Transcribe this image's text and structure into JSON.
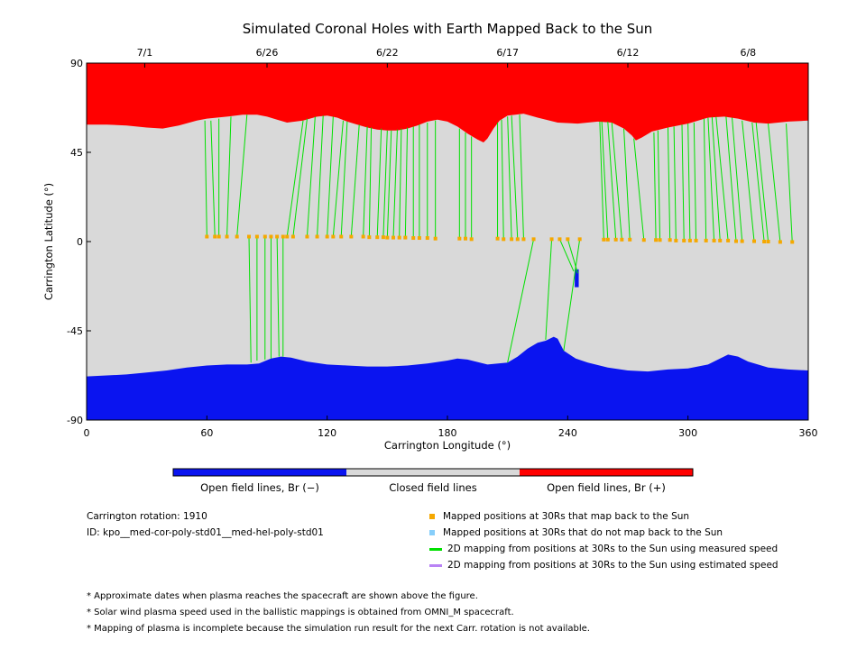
{
  "chart_data": {
    "type": "heatmap",
    "title": "Simulated Coronal Holes with Earth Mapped Back to the Sun",
    "xlabel": "Carrington Longitude (°)",
    "ylabel": "Carrington Latitude (°)",
    "xlim": [
      0,
      360
    ],
    "ylim": [
      -90,
      90
    ],
    "x_ticks": [
      "0",
      "60",
      "120",
      "180",
      "240",
      "300",
      "360"
    ],
    "y_ticks": [
      "90",
      "45",
      "0",
      "-45",
      "-90"
    ],
    "top_axis": {
      "dates": [
        {
          "label": "7/1",
          "lon": 29
        },
        {
          "label": "6/26",
          "lon": 90
        },
        {
          "label": "6/22",
          "lon": 150
        },
        {
          "label": "6/17",
          "lon": 210
        },
        {
          "label": "6/12",
          "lon": 270
        },
        {
          "label": "6/8",
          "lon": 330
        }
      ]
    },
    "colorbar": {
      "labels": [
        "Open field lines, Br (−)",
        "Closed field lines",
        "Open field lines, Br (+)"
      ],
      "colors": [
        "#0a14f0",
        "#d9d9d9",
        "#ff0000"
      ]
    },
    "north_boundary": [
      [
        0,
        59
      ],
      [
        10,
        59
      ],
      [
        20,
        58.5
      ],
      [
        30,
        57.5
      ],
      [
        38,
        57
      ],
      [
        46,
        58.5
      ],
      [
        55,
        61
      ],
      [
        60,
        62
      ],
      [
        70,
        63
      ],
      [
        78,
        64
      ],
      [
        85,
        64
      ],
      [
        90,
        63
      ],
      [
        95,
        61.5
      ],
      [
        100,
        60
      ],
      [
        108,
        61
      ],
      [
        115,
        63
      ],
      [
        120,
        63.5
      ],
      [
        125,
        62.5
      ],
      [
        130,
        60.5
      ],
      [
        135,
        59
      ],
      [
        140,
        57.5
      ],
      [
        145,
        56.5
      ],
      [
        150,
        56
      ],
      [
        155,
        56
      ],
      [
        160,
        57
      ],
      [
        165,
        58.5
      ],
      [
        170,
        60.5
      ],
      [
        175,
        61.5
      ],
      [
        180,
        60.5
      ],
      [
        185,
        58
      ],
      [
        190,
        54.5
      ],
      [
        195,
        51.5
      ],
      [
        198,
        50
      ],
      [
        200,
        52
      ],
      [
        203,
        57
      ],
      [
        206,
        61
      ],
      [
        210,
        63.5
      ],
      [
        218,
        64.5
      ],
      [
        225,
        62.5
      ],
      [
        235,
        60
      ],
      [
        245,
        59.5
      ],
      [
        255,
        60.5
      ],
      [
        262,
        60
      ],
      [
        268,
        57
      ],
      [
        272,
        53.5
      ],
      [
        274,
        51
      ],
      [
        277,
        52.5
      ],
      [
        282,
        55.5
      ],
      [
        290,
        57.5
      ],
      [
        300,
        59.5
      ],
      [
        310,
        62.5
      ],
      [
        318,
        63
      ],
      [
        325,
        62
      ],
      [
        333,
        60
      ],
      [
        340,
        59.5
      ],
      [
        350,
        60.5
      ],
      [
        360,
        61
      ]
    ],
    "south_boundary": [
      [
        0,
        -68
      ],
      [
        10,
        -67.5
      ],
      [
        20,
        -67
      ],
      [
        30,
        -66
      ],
      [
        40,
        -65
      ],
      [
        50,
        -63.5
      ],
      [
        60,
        -62.5
      ],
      [
        70,
        -62
      ],
      [
        80,
        -62
      ],
      [
        86,
        -61.5
      ],
      [
        92,
        -59
      ],
      [
        97,
        -58
      ],
      [
        102,
        -58.5
      ],
      [
        110,
        -60.5
      ],
      [
        120,
        -62
      ],
      [
        130,
        -62.5
      ],
      [
        140,
        -63
      ],
      [
        150,
        -63
      ],
      [
        160,
        -62.5
      ],
      [
        170,
        -61.5
      ],
      [
        180,
        -60
      ],
      [
        185,
        -59
      ],
      [
        190,
        -59.5
      ],
      [
        200,
        -62
      ],
      [
        210,
        -61
      ],
      [
        215,
        -58
      ],
      [
        220,
        -54
      ],
      [
        225,
        -51
      ],
      [
        229,
        -50
      ],
      [
        233,
        -48
      ],
      [
        235,
        -49
      ],
      [
        238,
        -55
      ],
      [
        244,
        -59
      ],
      [
        250,
        -61
      ],
      [
        260,
        -63.5
      ],
      [
        270,
        -65
      ],
      [
        280,
        -65.5
      ],
      [
        290,
        -64.5
      ],
      [
        300,
        -64
      ],
      [
        310,
        -62
      ],
      [
        316,
        -59
      ],
      [
        320,
        -57
      ],
      [
        325,
        -58
      ],
      [
        330,
        -60.5
      ],
      [
        340,
        -63.5
      ],
      [
        350,
        -64.5
      ],
      [
        360,
        -65
      ]
    ],
    "small_open_patch": {
      "lon": [
        243.5,
        245.5
      ],
      "lat": [
        -14,
        -23
      ]
    },
    "mapped_points": [
      [
        60,
        2.5
      ],
      [
        64,
        2.5
      ],
      [
        66,
        2.5
      ],
      [
        70,
        2.5
      ],
      [
        75,
        2.5
      ],
      [
        81,
        2.5
      ],
      [
        85,
        2.5
      ],
      [
        89,
        2.5
      ],
      [
        92,
        2.5
      ],
      [
        95,
        2.5
      ],
      [
        98,
        2.5
      ],
      [
        100,
        2.5
      ],
      [
        103,
        2.5
      ],
      [
        110,
        2.5
      ],
      [
        115,
        2.5
      ],
      [
        120,
        2.5
      ],
      [
        123,
        2.5
      ],
      [
        127,
        2.5
      ],
      [
        132,
        2.5
      ],
      [
        138,
        2.5
      ],
      [
        141,
        2.2
      ],
      [
        145,
        2.2
      ],
      [
        148,
        2.2
      ],
      [
        150,
        2
      ],
      [
        153,
        2
      ],
      [
        156,
        2
      ],
      [
        159,
        2
      ],
      [
        163,
        1.8
      ],
      [
        166,
        1.8
      ],
      [
        170,
        1.8
      ],
      [
        174,
        1.5
      ],
      [
        186,
        1.5
      ],
      [
        189,
        1.5
      ],
      [
        192,
        1.2
      ],
      [
        205,
        1.5
      ],
      [
        208,
        1.2
      ],
      [
        212,
        1.2
      ],
      [
        215,
        1.2
      ],
      [
        218,
        1.2
      ],
      [
        223,
        1.2
      ],
      [
        232,
        1.2
      ],
      [
        236,
        1.2
      ],
      [
        240,
        1.2
      ],
      [
        246,
        1.2
      ],
      [
        258,
        1
      ],
      [
        260,
        1
      ],
      [
        264,
        1
      ],
      [
        267,
        1
      ],
      [
        271,
        1
      ],
      [
        278,
        0.8
      ],
      [
        284,
        0.8
      ],
      [
        286,
        0.8
      ],
      [
        291,
        0.8
      ],
      [
        294,
        0.5
      ],
      [
        298,
        0.5
      ],
      [
        301,
        0.5
      ],
      [
        304,
        0.5
      ],
      [
        309,
        0.5
      ],
      [
        313,
        0.5
      ],
      [
        316,
        0.5
      ],
      [
        320,
        0.5
      ],
      [
        324,
        0.2
      ],
      [
        327,
        0.2
      ],
      [
        333,
        0.2
      ],
      [
        338,
        0
      ],
      [
        340,
        0
      ],
      [
        346,
        -0.2
      ],
      [
        352,
        -0.2
      ]
    ],
    "mapping_lines": [
      [
        60,
        2.5,
        59,
        61
      ],
      [
        64,
        2.5,
        62,
        61
      ],
      [
        66,
        2.5,
        66,
        62
      ],
      [
        70,
        2.5,
        72,
        63
      ],
      [
        75,
        2.5,
        80,
        64
      ],
      [
        81,
        2.5,
        82,
        -61
      ],
      [
        85,
        2.5,
        85,
        -60
      ],
      [
        89,
        2.5,
        89,
        -59.5
      ],
      [
        92,
        2.5,
        92,
        -59
      ],
      [
        95,
        2.5,
        96,
        -58
      ],
      [
        98,
        2.5,
        98,
        -58
      ],
      [
        100,
        2.5,
        108,
        61
      ],
      [
        103,
        2.5,
        110,
        62
      ],
      [
        110,
        2.5,
        114,
        63
      ],
      [
        115,
        2.5,
        118,
        63.5
      ],
      [
        120,
        2.5,
        123,
        63
      ],
      [
        123,
        2.5,
        128,
        61
      ],
      [
        127,
        2.5,
        130,
        60.5
      ],
      [
        132,
        2.5,
        136,
        59
      ],
      [
        138,
        2.5,
        140,
        58
      ],
      [
        141,
        2.2,
        142,
        57.5
      ],
      [
        145,
        2.2,
        147,
        57
      ],
      [
        148,
        2.2,
        150,
        56
      ],
      [
        150,
        2,
        152,
        56
      ],
      [
        153,
        2,
        155,
        56.5
      ],
      [
        156,
        2,
        157,
        57
      ],
      [
        159,
        2,
        160,
        57.5
      ],
      [
        163,
        1.8,
        163,
        58
      ],
      [
        166,
        1.8,
        166,
        59
      ],
      [
        170,
        1.8,
        170,
        60
      ],
      [
        174,
        1.5,
        174,
        61
      ],
      [
        186,
        1.5,
        186,
        57
      ],
      [
        189,
        1.5,
        189,
        55
      ],
      [
        192,
        1.2,
        192,
        53
      ],
      [
        205,
        1.5,
        205,
        60
      ],
      [
        208,
        1.2,
        207,
        61.5
      ],
      [
        212,
        1.2,
        210,
        63
      ],
      [
        215,
        1.2,
        212,
        63.5
      ],
      [
        218,
        1.2,
        216,
        64
      ],
      [
        223,
        1.2,
        210,
        -61
      ],
      [
        232,
        1.2,
        229,
        -49.5
      ],
      [
        236,
        1.2,
        243,
        -15
      ],
      [
        240,
        1.2,
        245,
        -16
      ],
      [
        246,
        1.2,
        238,
        -55
      ],
      [
        258,
        1,
        256,
        60.5
      ],
      [
        260,
        1,
        257,
        60.5
      ],
      [
        264,
        1,
        260,
        60.5
      ],
      [
        267,
        1,
        262,
        60
      ],
      [
        271,
        1,
        268,
        57
      ],
      [
        278,
        0.8,
        273,
        52
      ],
      [
        284,
        0.8,
        283,
        55
      ],
      [
        286,
        0.8,
        285,
        56
      ],
      [
        291,
        0.8,
        290,
        57.5
      ],
      [
        294,
        0.5,
        293,
        58
      ],
      [
        298,
        0.5,
        297,
        59
      ],
      [
        301,
        0.5,
        300,
        59.5
      ],
      [
        304,
        0.5,
        303,
        60
      ],
      [
        309,
        0.5,
        308,
        62
      ],
      [
        313,
        0.5,
        310,
        62.5
      ],
      [
        316,
        0.5,
        312,
        62.8
      ],
      [
        320,
        0.5,
        314,
        63
      ],
      [
        324,
        0.2,
        319,
        63
      ],
      [
        327,
        0.2,
        322,
        62.5
      ],
      [
        333,
        0.2,
        327,
        61
      ],
      [
        338,
        0,
        332,
        60
      ],
      [
        340,
        0,
        334,
        60
      ],
      [
        346,
        -0.2,
        340,
        59.5
      ],
      [
        352,
        -0.2,
        349,
        59.5
      ]
    ]
  },
  "info": {
    "rotation_label": "Carrington rotation: 1910",
    "id_label": "ID: kpo__med-cor-poly-std01__med-hel-poly-std01"
  },
  "legend": {
    "mapped": {
      "label": "Mapped positions at 30Rs that map back to the Sun",
      "color": "#f5a800"
    },
    "not_mapped": {
      "label": "Mapped positions at 30Rs that do not map back to the Sun",
      "color": "#87cefa"
    },
    "measured": {
      "label": "2D mapping from positions at 30Rs to the Sun using measured speed",
      "color": "#00e000"
    },
    "estimated": {
      "label": "2D mapping from positions at 30Rs to the Sun using estimated speed",
      "color": "#b983f5"
    }
  },
  "notes": [
    "* Approximate dates when plasma reaches the spacecraft are shown above the figure.",
    "* Solar wind plasma speed used in the ballistic mappings is obtained from OMNI_M spacecraft.",
    "* Mapping of plasma is incomplete because the simulation run result for the next Carr. rotation is not available."
  ]
}
